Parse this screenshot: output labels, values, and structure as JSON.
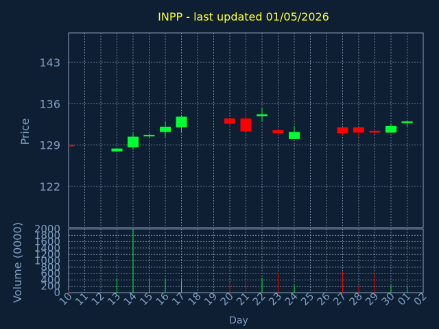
{
  "chart_data": {
    "type": "candlestick",
    "title": "INPP - last updated 01/05/2026",
    "xlabel": "Day",
    "ylabel": "Price",
    "volume_label": "Volume (0000)",
    "grid": true,
    "x": [
      "10",
      "11",
      "12",
      "13",
      "14",
      "15",
      "16",
      "17",
      "18",
      "19",
      "20",
      "21",
      "22",
      "23",
      "24",
      "25",
      "26",
      "27",
      "28",
      "29",
      "30",
      "01",
      "02"
    ],
    "price_axis": {
      "ylim": [
        115,
        148
      ],
      "ticks": [
        "122",
        "129",
        "136",
        "143"
      ]
    },
    "volume_axis": {
      "ylim": [
        0,
        2000
      ],
      "ticks": [
        "0",
        "200",
        "400",
        "600",
        "800",
        "1000",
        "1200",
        "1400",
        "1600",
        "1800",
        "2000"
      ]
    },
    "candles": [
      {
        "day": "10",
        "open": 129.0,
        "close": 128.8,
        "high": 129.0,
        "low": 128.8
      },
      {
        "day": "13",
        "open": 127.9,
        "close": 128.4,
        "high": 128.4,
        "low": 127.9
      },
      {
        "day": "14",
        "open": 128.6,
        "close": 130.4,
        "high": 131.0,
        "low": 128.2
      },
      {
        "day": "15",
        "open": 130.5,
        "close": 130.7,
        "high": 130.9,
        "low": 130.3
      },
      {
        "day": "16",
        "open": 131.2,
        "close": 132.1,
        "high": 133.0,
        "low": 130.4
      },
      {
        "day": "17",
        "open": 132.0,
        "close": 133.8,
        "high": 133.8,
        "low": 131.2
      },
      {
        "day": "20",
        "open": 133.5,
        "close": 132.6,
        "high": 133.5,
        "low": 131.9
      },
      {
        "day": "21",
        "open": 133.5,
        "close": 131.3,
        "high": 134.5,
        "low": 131.3
      },
      {
        "day": "22",
        "open": 133.9,
        "close": 134.2,
        "high": 135.2,
        "low": 133.0
      },
      {
        "day": "23",
        "open": 131.5,
        "close": 131.0,
        "high": 131.5,
        "low": 130.6
      },
      {
        "day": "24",
        "open": 130.0,
        "close": 131.2,
        "high": 132.2,
        "low": 130.0
      },
      {
        "day": "27",
        "open": 132.0,
        "close": 131.0,
        "high": 132.0,
        "low": 130.6
      },
      {
        "day": "28",
        "open": 132.0,
        "close": 131.1,
        "high": 132.0,
        "low": 130.4
      },
      {
        "day": "29",
        "open": 131.4,
        "close": 131.1,
        "high": 131.6,
        "low": 130.8
      },
      {
        "day": "30",
        "open": 131.1,
        "close": 132.2,
        "high": 132.6,
        "low": 131.1
      },
      {
        "day": "01",
        "open": 132.7,
        "close": 133.0,
        "high": 133.2,
        "low": 132.0
      }
    ],
    "volume": [
      {
        "day": "10",
        "value": 60
      },
      {
        "day": "13",
        "value": 440
      },
      {
        "day": "14",
        "value": 2000
      },
      {
        "day": "15",
        "value": 400
      },
      {
        "day": "16",
        "value": 420
      },
      {
        "day": "17",
        "value": 380
      },
      {
        "day": "20",
        "value": 320
      },
      {
        "day": "21",
        "value": 360
      },
      {
        "day": "22",
        "value": 460
      },
      {
        "day": "23",
        "value": 620
      },
      {
        "day": "24",
        "value": 230
      },
      {
        "day": "27",
        "value": 650
      },
      {
        "day": "28",
        "value": 220
      },
      {
        "day": "29",
        "value": 620
      },
      {
        "day": "30",
        "value": 230
      },
      {
        "day": "01",
        "value": 220
      }
    ],
    "colors": {
      "background": "#0f1f33",
      "plot_border": "#8aa0b8",
      "grid": "#8aa0b8",
      "title": "#ffff33",
      "axis_text": "#7f9fc4",
      "up": "#00ff33",
      "down": "#ff0000"
    }
  }
}
